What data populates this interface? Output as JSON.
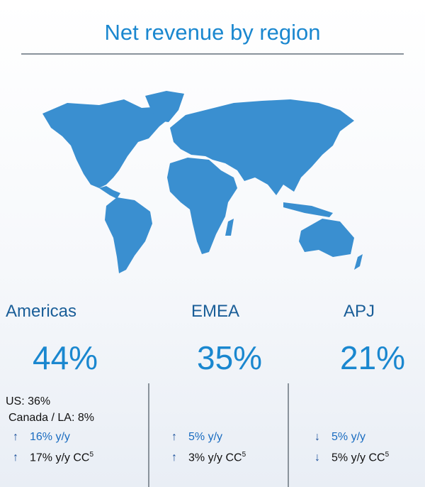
{
  "title": "Net revenue by region",
  "regions": [
    {
      "name": "Americas",
      "share": "44%",
      "details": [
        "US: 36%",
        "Canada / LA: 8%"
      ],
      "arrow": "↑",
      "growth": "16% y/y",
      "growth_cc": "17% y/y",
      "cc": "CC",
      "footnote": "5"
    },
    {
      "name": "EMEA",
      "share": "35%",
      "details": [],
      "arrow": "↑",
      "growth": "5% y/y",
      "growth_cc": "3% y/y",
      "cc": "CC",
      "footnote": "5"
    },
    {
      "name": "APJ",
      "share": "21%",
      "details": [],
      "arrow": "↓",
      "growth": "5% y/y",
      "growth_cc": "5% y/y",
      "cc": "CC",
      "footnote": "5"
    }
  ]
}
